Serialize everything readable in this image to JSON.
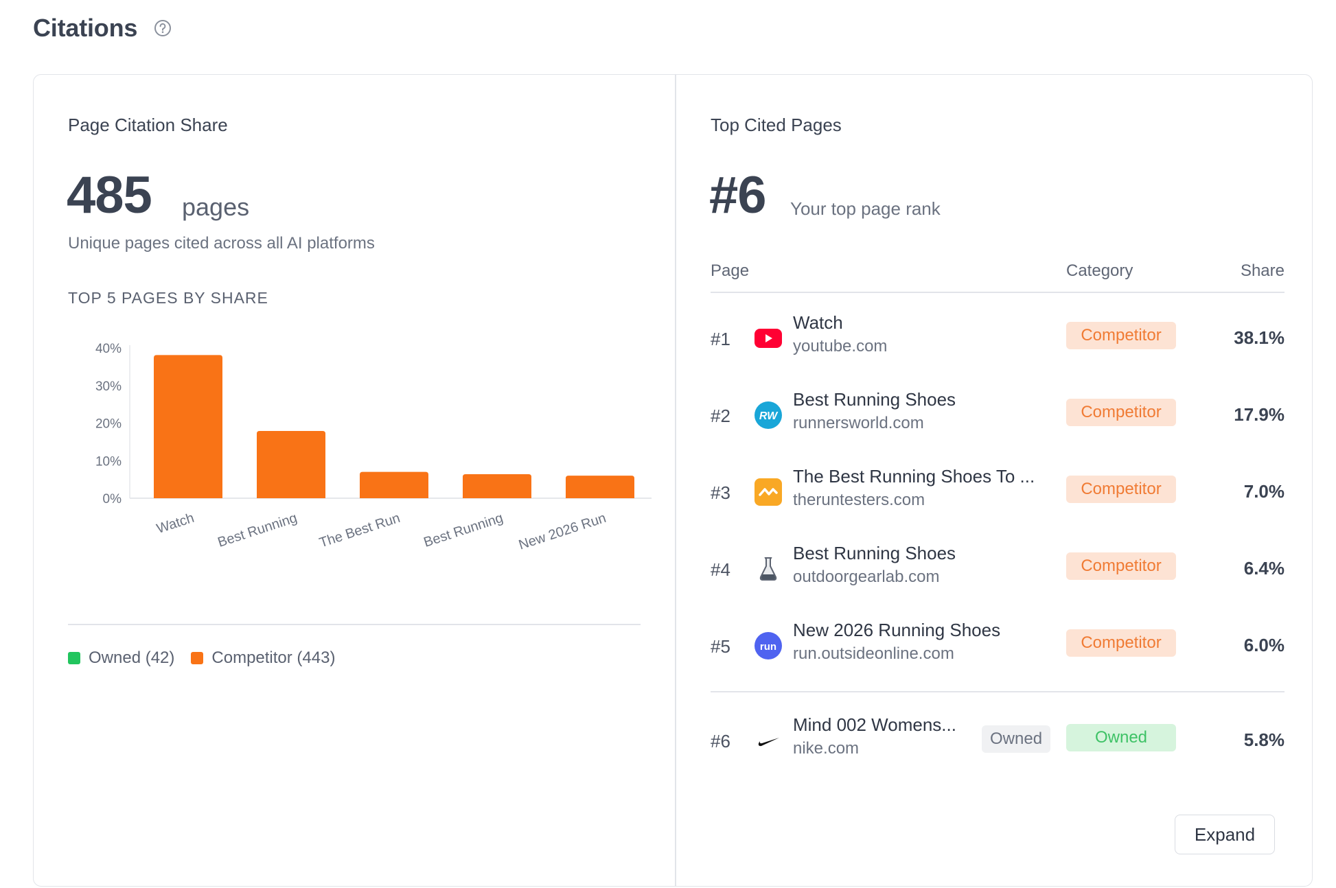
{
  "header": {
    "title": "Citations",
    "help_icon": "question-circle-icon"
  },
  "left_panel": {
    "heading": "Page Citation Share",
    "total": "485",
    "total_unit": "pages",
    "subtext": "Unique pages cited across all AI platforms",
    "section_label": "TOP 5 PAGES BY SHARE",
    "legend": [
      {
        "label": "Owned (42)",
        "color": "#22c55e"
      },
      {
        "label": "Competitor (443)",
        "color": "#f97316"
      }
    ]
  },
  "chart_data": {
    "type": "bar",
    "title": "TOP 5 PAGES BY SHARE",
    "categories": [
      "Watch",
      "Best Running",
      "The Best Run",
      "Best Running",
      "New 2026 Run"
    ],
    "values": [
      38.1,
      17.9,
      7.0,
      6.4,
      6.0
    ],
    "ylim": [
      0,
      40
    ],
    "yticks": [
      "0%",
      "10%",
      "20%",
      "30%",
      "40%"
    ],
    "bar_color": "#f97316",
    "xlabel": "",
    "ylabel": ""
  },
  "right_panel": {
    "heading": "Top Cited Pages",
    "rank": "#6",
    "rank_label": "Your top page rank",
    "columns": {
      "page": "Page",
      "category": "Category",
      "share": "Share"
    },
    "rows": [
      {
        "rank": "#1",
        "title": "Watch",
        "domain": "youtube.com",
        "category": "Competitor",
        "share": "38.1%",
        "icon": "youtube-icon"
      },
      {
        "rank": "#2",
        "title": "Best Running Shoes",
        "domain": "runnersworld.com",
        "category": "Competitor",
        "share": "17.9%",
        "icon": "runnersworld-icon"
      },
      {
        "rank": "#3",
        "title": "The Best Running Shoes To ...",
        "domain": "theruntesters.com",
        "category": "Competitor",
        "share": "7.0%",
        "icon": "theruntesters-icon"
      },
      {
        "rank": "#4",
        "title": "Best Running Shoes",
        "domain": "outdoorgearlab.com",
        "category": "Competitor",
        "share": "6.4%",
        "icon": "outdoorgearlab-icon"
      },
      {
        "rank": "#5",
        "title": "New 2026 Running Shoes",
        "domain": "run.outsideonline.com",
        "category": "Competitor",
        "share": "6.0%",
        "icon": "outsideonline-icon"
      }
    ],
    "own_row": {
      "rank": "#6",
      "title": "Mind 002 Womens...",
      "owned_tag": "Owned",
      "domain": "nike.com",
      "category": "Owned",
      "share": "5.8%",
      "icon": "nike-icon"
    },
    "expand_label": "Expand"
  }
}
